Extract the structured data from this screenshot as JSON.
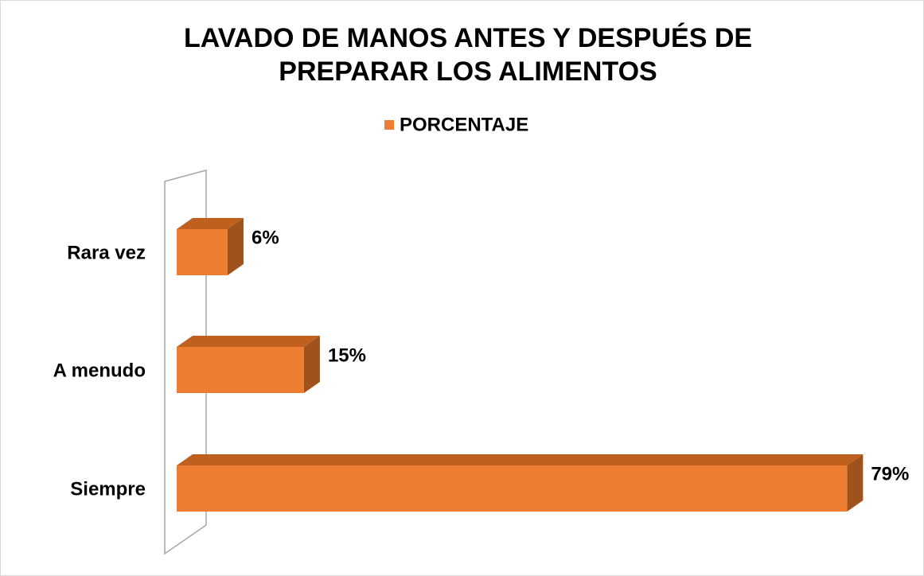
{
  "chart_data": {
    "type": "bar",
    "orientation": "horizontal",
    "title": [
      "LAVADO DE MANOS ANTES Y DESPUÉS DE",
      "PREPARAR LOS ALIMENTOS"
    ],
    "categories": [
      "Rara vez",
      "A menudo",
      "Siempre"
    ],
    "series": [
      {
        "name": "PORCENTAJE",
        "color": "#ed7d31",
        "values": [
          6,
          15,
          79
        ],
        "value_labels": [
          "6%",
          "15%",
          "79%"
        ]
      }
    ],
    "xlim": [
      0,
      80
    ],
    "legend": "top"
  }
}
